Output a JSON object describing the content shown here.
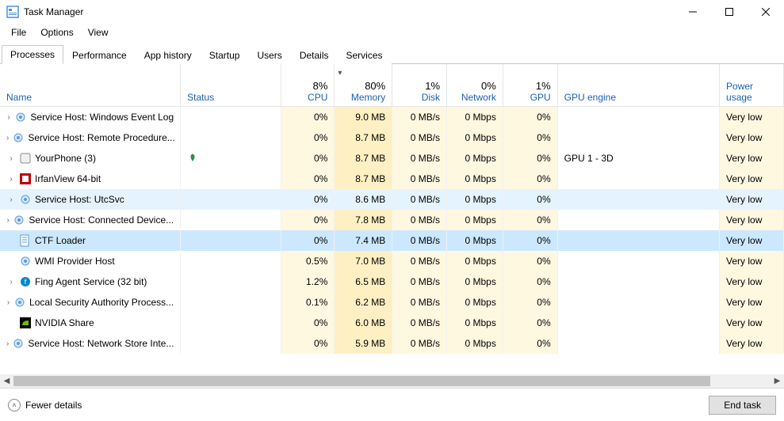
{
  "window": {
    "title": "Task Manager"
  },
  "menu": [
    "File",
    "Options",
    "View"
  ],
  "tabs": [
    "Processes",
    "Performance",
    "App history",
    "Startup",
    "Users",
    "Details",
    "Services"
  ],
  "active_tab": 0,
  "columns": {
    "name": "Name",
    "status": "Status",
    "cpu": {
      "pct": "8%",
      "label": "CPU"
    },
    "memory": {
      "pct": "80%",
      "label": "Memory"
    },
    "disk": {
      "pct": "1%",
      "label": "Disk"
    },
    "network": {
      "pct": "0%",
      "label": "Network"
    },
    "gpu": {
      "pct": "1%",
      "label": "GPU"
    },
    "gpu_engine": "GPU engine",
    "power": "Power usage"
  },
  "sort_column": "memory",
  "processes": [
    {
      "expandable": true,
      "icon": "gear",
      "name": "Service Host: Windows Event Log",
      "status": "",
      "cpu": "0%",
      "mem": "9.0 MB",
      "disk": "0 MB/s",
      "net": "0 Mbps",
      "gpu": "0%",
      "gpue": "",
      "power": "Very low"
    },
    {
      "expandable": true,
      "icon": "gear",
      "name": "Service Host: Remote Procedure...",
      "status": "",
      "cpu": "0%",
      "mem": "8.7 MB",
      "disk": "0 MB/s",
      "net": "0 Mbps",
      "gpu": "0%",
      "gpue": "",
      "power": "Very low"
    },
    {
      "expandable": true,
      "icon": "app",
      "name": "YourPhone (3)",
      "status": "leaf",
      "cpu": "0%",
      "mem": "8.7 MB",
      "disk": "0 MB/s",
      "net": "0 Mbps",
      "gpu": "0%",
      "gpue": "GPU 1 - 3D",
      "power": "Very low"
    },
    {
      "expandable": true,
      "icon": "irfan",
      "name": "IrfanView 64-bit",
      "status": "",
      "cpu": "0%",
      "mem": "8.7 MB",
      "disk": "0 MB/s",
      "net": "0 Mbps",
      "gpu": "0%",
      "gpue": "",
      "power": "Very low"
    },
    {
      "expandable": true,
      "icon": "gear",
      "name": "Service Host: UtcSvc",
      "status": "",
      "cpu": "0%",
      "mem": "8.6 MB",
      "disk": "0 MB/s",
      "net": "0 Mbps",
      "gpu": "0%",
      "gpue": "",
      "power": "Very low",
      "hover": true
    },
    {
      "expandable": true,
      "icon": "gear",
      "name": "Service Host: Connected Device...",
      "status": "",
      "cpu": "0%",
      "mem": "7.8 MB",
      "disk": "0 MB/s",
      "net": "0 Mbps",
      "gpu": "0%",
      "gpue": "",
      "power": "Very low"
    },
    {
      "expandable": false,
      "icon": "ctf",
      "name": "CTF Loader",
      "status": "",
      "cpu": "0%",
      "mem": "7.4 MB",
      "disk": "0 MB/s",
      "net": "0 Mbps",
      "gpu": "0%",
      "gpue": "",
      "power": "Very low",
      "selected": true
    },
    {
      "expandable": false,
      "icon": "gear",
      "name": "WMI Provider Host",
      "status": "",
      "cpu": "0.5%",
      "mem": "7.0 MB",
      "disk": "0 MB/s",
      "net": "0 Mbps",
      "gpu": "0%",
      "gpue": "",
      "power": "Very low"
    },
    {
      "expandable": true,
      "icon": "fing",
      "name": "Fing Agent Service (32 bit)",
      "status": "",
      "cpu": "1.2%",
      "mem": "6.5 MB",
      "disk": "0 MB/s",
      "net": "0 Mbps",
      "gpu": "0%",
      "gpue": "",
      "power": "Very low"
    },
    {
      "expandable": true,
      "icon": "gear",
      "name": "Local Security Authority Process...",
      "status": "",
      "cpu": "0.1%",
      "mem": "6.2 MB",
      "disk": "0 MB/s",
      "net": "0 Mbps",
      "gpu": "0%",
      "gpue": "",
      "power": "Very low"
    },
    {
      "expandable": false,
      "icon": "nvidia",
      "name": "NVIDIA Share",
      "status": "",
      "cpu": "0%",
      "mem": "6.0 MB",
      "disk": "0 MB/s",
      "net": "0 Mbps",
      "gpu": "0%",
      "gpue": "",
      "power": "Very low"
    },
    {
      "expandable": true,
      "icon": "gear",
      "name": "Service Host: Network Store Inte...",
      "status": "",
      "cpu": "0%",
      "mem": "5.9 MB",
      "disk": "0 MB/s",
      "net": "0 Mbps",
      "gpu": "0%",
      "gpue": "",
      "power": "Very low"
    }
  ],
  "footer": {
    "fewer": "Fewer details",
    "end_task": "End task"
  },
  "colors": {
    "heat_light": "#fff8e1",
    "heat_mid": "#fff0c4",
    "selected": "#cce8ff",
    "hover": "#e5f3ff",
    "link_blue": "#1a5fb4"
  }
}
